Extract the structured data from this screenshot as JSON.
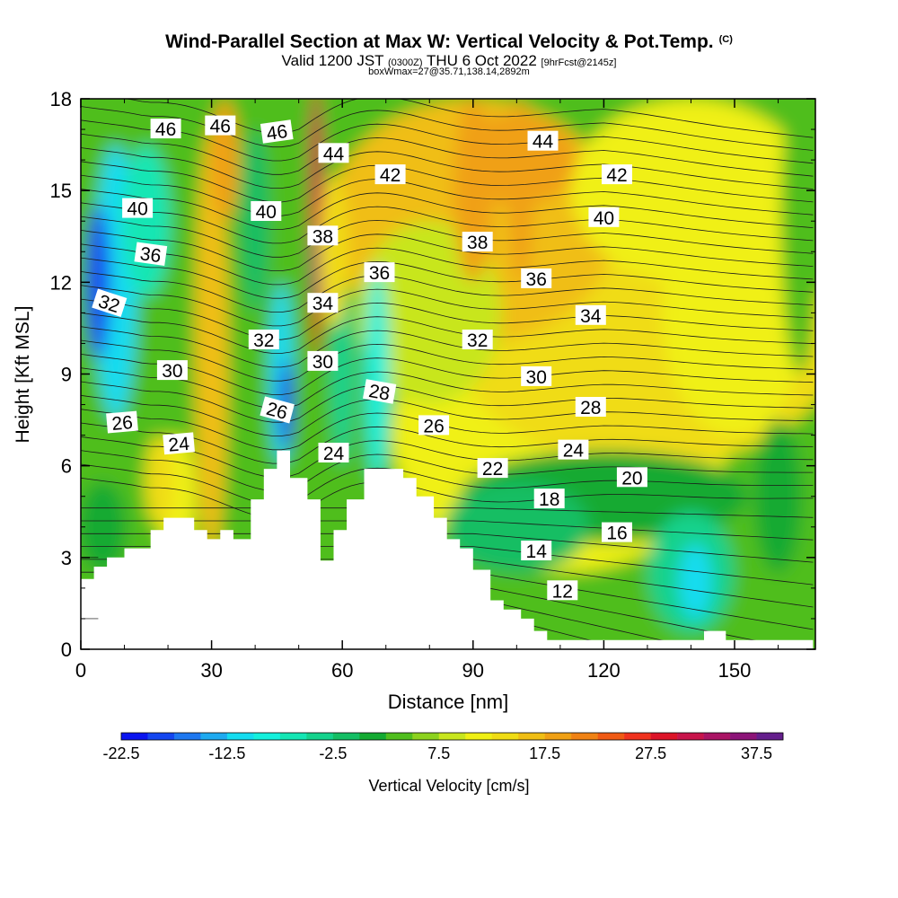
{
  "chart_data": {
    "type": "heatmap",
    "title": "Wind-Parallel Section at Max W: Vertical Velocity & Pot.Temp.",
    "title_tag": "(C)",
    "subtitle_main": "Valid 1200 JST",
    "subtitle_utc": "(0300Z)",
    "subtitle_date": "THU 6 Oct 2022",
    "subtitle_fcst": "[9hrFcst@2145z]",
    "subtitle_2": "boxWmax=27@35.71,138.14,2892m",
    "xlabel": "Distance [nm]",
    "ylabel": "Height [Kft MSL]",
    "xlim": [
      0,
      168
    ],
    "ylim": [
      0,
      18
    ],
    "x_ticks": [
      "0",
      "30",
      "60",
      "90",
      "120",
      "150"
    ],
    "y_ticks": [
      "0",
      "3",
      "6",
      "9",
      "12",
      "15",
      "18"
    ],
    "colorbar": {
      "label": "Vertical Velocity [cm/s]",
      "tick_labels": [
        "-22.5",
        "-12.5",
        "-2.5",
        "7.5",
        "17.5",
        "27.5",
        "37.5"
      ],
      "colors": [
        "#0a14f0",
        "#1446f0",
        "#1e78f0",
        "#1eaaf0",
        "#14dcf0",
        "#14f0dc",
        "#14e6b4",
        "#14d28c",
        "#14be64",
        "#14aa32",
        "#50be1e",
        "#8cd21e",
        "#c8e61e",
        "#f0f014",
        "#f0dc14",
        "#f0be14",
        "#f0a014",
        "#f08214",
        "#f05a14",
        "#f0321e",
        "#dc1428",
        "#c8144b",
        "#aa1464",
        "#8c1478",
        "#641e8c"
      ]
    },
    "contour_labels": [
      {
        "text": "46",
        "x": 19.5,
        "y": 17.0,
        "rot": 0
      },
      {
        "text": "46",
        "x": 32.0,
        "y": 17.1,
        "rot": 0
      },
      {
        "text": "46",
        "x": 45.0,
        "y": 16.9,
        "rot": -8
      },
      {
        "text": "44",
        "x": 58.0,
        "y": 16.2,
        "rot": 0
      },
      {
        "text": "44",
        "x": 106.0,
        "y": 16.6,
        "rot": 0
      },
      {
        "text": "42",
        "x": 71.0,
        "y": 15.5,
        "rot": 0
      },
      {
        "text": "42",
        "x": 123.0,
        "y": 15.5,
        "rot": 0
      },
      {
        "text": "40",
        "x": 13.0,
        "y": 14.4,
        "rot": 0
      },
      {
        "text": "40",
        "x": 42.5,
        "y": 14.3,
        "rot": 0
      },
      {
        "text": "40",
        "x": 120.0,
        "y": 14.1,
        "rot": 0
      },
      {
        "text": "38",
        "x": 55.5,
        "y": 13.5,
        "rot": 0
      },
      {
        "text": "38",
        "x": 91.0,
        "y": 13.3,
        "rot": 0
      },
      {
        "text": "36",
        "x": 16.0,
        "y": 12.9,
        "rot": 8
      },
      {
        "text": "36",
        "x": 68.5,
        "y": 12.3,
        "rot": 0
      },
      {
        "text": "36",
        "x": 104.5,
        "y": 12.1,
        "rot": 0
      },
      {
        "text": "34",
        "x": 55.5,
        "y": 11.3,
        "rot": 0
      },
      {
        "text": "34",
        "x": 117.0,
        "y": 10.9,
        "rot": 0
      },
      {
        "text": "32",
        "x": 6.5,
        "y": 11.3,
        "rot": 18
      },
      {
        "text": "32",
        "x": 42.0,
        "y": 10.1,
        "rot": 0
      },
      {
        "text": "32",
        "x": 91.0,
        "y": 10.1,
        "rot": 0
      },
      {
        "text": "30",
        "x": 21.0,
        "y": 9.1,
        "rot": 0
      },
      {
        "text": "30",
        "x": 55.5,
        "y": 9.4,
        "rot": 0
      },
      {
        "text": "30",
        "x": 104.5,
        "y": 8.9,
        "rot": 0
      },
      {
        "text": "28",
        "x": 68.5,
        "y": 8.4,
        "rot": 10
      },
      {
        "text": "28",
        "x": 117.0,
        "y": 7.9,
        "rot": 0
      },
      {
        "text": "26",
        "x": 9.5,
        "y": 7.4,
        "rot": -5
      },
      {
        "text": "26",
        "x": 45.0,
        "y": 7.8,
        "rot": 15
      },
      {
        "text": "26",
        "x": 81.0,
        "y": 7.3,
        "rot": 0
      },
      {
        "text": "24",
        "x": 22.5,
        "y": 6.7,
        "rot": -5
      },
      {
        "text": "24",
        "x": 58.0,
        "y": 6.4,
        "rot": 0
      },
      {
        "text": "24",
        "x": 113.0,
        "y": 6.5,
        "rot": 0
      },
      {
        "text": "22",
        "x": 94.5,
        "y": 5.9,
        "rot": 0
      },
      {
        "text": "20",
        "x": 126.5,
        "y": 5.6,
        "rot": 0
      },
      {
        "text": "18",
        "x": 107.5,
        "y": 4.9,
        "rot": 0
      },
      {
        "text": "16",
        "x": 123.0,
        "y": 3.8,
        "rot": 0
      },
      {
        "text": "14",
        "x": 104.5,
        "y": 3.2,
        "rot": 0
      },
      {
        "text": "12",
        "x": 110.5,
        "y": 1.9,
        "rot": 0
      }
    ],
    "terrain": [
      [
        0,
        2.3
      ],
      [
        3,
        2.3
      ],
      [
        3,
        2.7
      ],
      [
        6,
        2.7
      ],
      [
        6,
        3.0
      ],
      [
        10,
        3.0
      ],
      [
        10,
        3.3
      ],
      [
        16,
        3.3
      ],
      [
        16,
        3.9
      ],
      [
        19,
        3.9
      ],
      [
        19,
        4.3
      ],
      [
        26,
        4.3
      ],
      [
        26,
        3.9
      ],
      [
        29,
        3.9
      ],
      [
        29,
        3.6
      ],
      [
        32,
        3.6
      ],
      [
        32,
        3.9
      ],
      [
        35,
        3.9
      ],
      [
        35,
        3.6
      ],
      [
        39,
        3.6
      ],
      [
        39,
        4.9
      ],
      [
        42,
        4.9
      ],
      [
        42,
        5.9
      ],
      [
        45,
        5.9
      ],
      [
        45,
        6.5
      ],
      [
        48,
        6.5
      ],
      [
        48,
        5.6
      ],
      [
        52,
        5.6
      ],
      [
        52,
        4.9
      ],
      [
        55,
        4.9
      ],
      [
        55,
        2.9
      ],
      [
        58,
        2.9
      ],
      [
        58,
        3.9
      ],
      [
        61,
        3.9
      ],
      [
        61,
        4.9
      ],
      [
        65,
        4.9
      ],
      [
        65,
        5.9
      ],
      [
        74,
        5.9
      ],
      [
        74,
        5.6
      ],
      [
        77,
        5.6
      ],
      [
        77,
        5.0
      ],
      [
        81,
        5.0
      ],
      [
        81,
        4.3
      ],
      [
        84,
        4.3
      ],
      [
        84,
        3.6
      ],
      [
        87,
        3.6
      ],
      [
        87,
        3.3
      ],
      [
        90,
        3.3
      ],
      [
        90,
        2.6
      ],
      [
        94,
        2.6
      ],
      [
        94,
        1.6
      ],
      [
        97,
        1.6
      ],
      [
        97,
        1.3
      ],
      [
        101,
        1.3
      ],
      [
        101,
        1.0
      ],
      [
        104,
        1.0
      ],
      [
        104,
        0.6
      ],
      [
        107,
        0.6
      ],
      [
        107,
        0.3
      ],
      [
        143,
        0.3
      ],
      [
        143,
        0.6
      ],
      [
        148,
        0.6
      ],
      [
        148,
        0.3
      ],
      [
        168,
        0.3
      ],
      [
        168,
        0
      ],
      [
        0,
        0
      ]
    ]
  }
}
